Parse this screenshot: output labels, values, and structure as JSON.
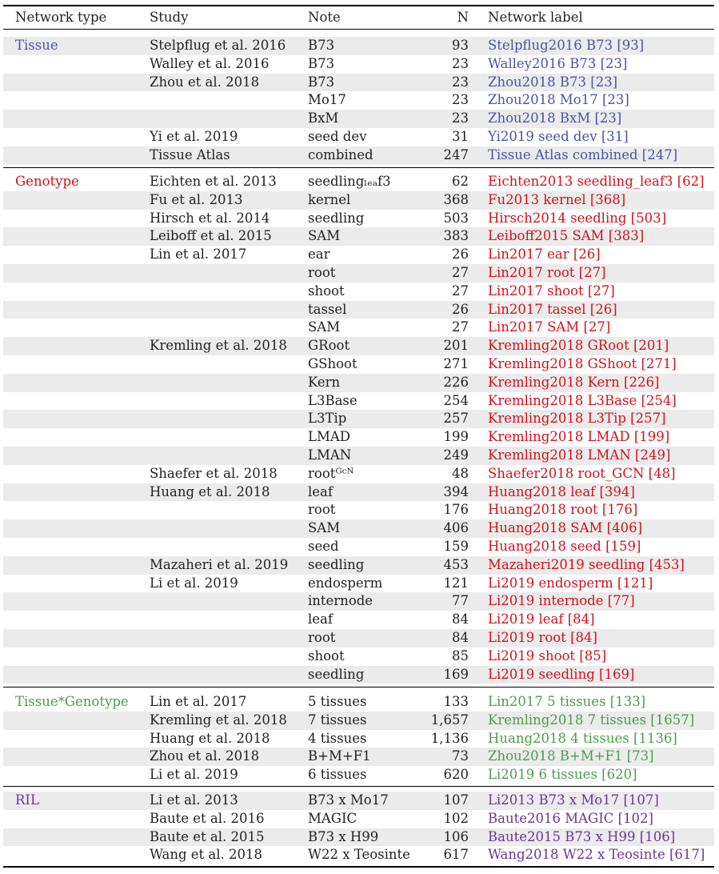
{
  "header": {
    "type": "Network type",
    "study": "Study",
    "note": "Note",
    "n": "N",
    "label": "Network label"
  },
  "colors": {
    "tissue": "#4a54a6",
    "genotype": "#d1121b",
    "tissue_genotype": "#4f9a4f",
    "ril": "#6a3796"
  },
  "groups": [
    {
      "type": "Tissue",
      "color": "#4a54a6",
      "rows": [
        {
          "study": "Stelpflug et al. 2016",
          "note": "B73",
          "n": "93",
          "label": "Stelpflug2016 B73 [93]"
        },
        {
          "study": "Walley et al. 2016",
          "note": "B73",
          "n": "23",
          "label": "Walley2016 B73 [23]"
        },
        {
          "study": "Zhou et al. 2018",
          "note": "B73",
          "n": "23",
          "label": "Zhou2018 B73 [23]"
        },
        {
          "study": "",
          "note": "Mo17",
          "n": "23",
          "label": "Zhou2018 Mo17 [23]"
        },
        {
          "study": "",
          "note": "BxM",
          "n": "23",
          "label": "Zhou2018 BxM [23]"
        },
        {
          "study": "Yi et al. 2019",
          "note": "seed dev",
          "n": "31",
          "label": "Yi2019 seed dev [31]"
        },
        {
          "study": "Tissue Atlas",
          "note": "combined",
          "n": "247",
          "label": "Tissue Atlas combined [247]"
        }
      ]
    },
    {
      "type": "Genotype",
      "color": "#d1121b",
      "rows": [
        {
          "study": "Eichten et al. 2013",
          "note": "seedlingₗ​ₑₐf3",
          "n": "62",
          "label": "Eichten2013 seedling_leaf3 [62]"
        },
        {
          "study": "Fu et al. 2013",
          "note": "kernel",
          "n": "368",
          "label": "Fu2013 kernel [368]"
        },
        {
          "study": "Hirsch et al. 2014",
          "note": "seedling",
          "n": "503",
          "label": "Hirsch2014 seedling [503]"
        },
        {
          "study": "Leiboff et al. 2015",
          "note": "SAM",
          "n": "383",
          "label": "Leiboff2015 SAM [383]"
        },
        {
          "study": "Lin et al. 2017",
          "note": "ear",
          "n": "26",
          "label": "Lin2017 ear [26]"
        },
        {
          "study": "",
          "note": "root",
          "n": "27",
          "label": "Lin2017 root [27]"
        },
        {
          "study": "",
          "note": "shoot",
          "n": "27",
          "label": "Lin2017 shoot [27]"
        },
        {
          "study": "",
          "note": "tassel",
          "n": "26",
          "label": "Lin2017 tassel [26]"
        },
        {
          "study": "",
          "note": "SAM",
          "n": "27",
          "label": "Lin2017 SAM [27]"
        },
        {
          "study": "Kremling et al. 2018",
          "note": "GRoot",
          "n": "201",
          "label": "Kremling2018 GRoot [201]"
        },
        {
          "study": "",
          "note": "GShoot",
          "n": "271",
          "label": "Kremling2018 GShoot [271]"
        },
        {
          "study": "",
          "note": "Kern",
          "n": "226",
          "label": "Kremling2018 Kern [226]"
        },
        {
          "study": "",
          "note": "L3Base",
          "n": "254",
          "label": "Kremling2018 L3Base [254]"
        },
        {
          "study": "",
          "note": "L3Tip",
          "n": "257",
          "label": "Kremling2018 L3Tip [257]"
        },
        {
          "study": "",
          "note": "LMAD",
          "n": "199",
          "label": "Kremling2018 LMAD [199]"
        },
        {
          "study": "",
          "note": "LMAN",
          "n": "249",
          "label": "Kremling2018 LMAN [249]"
        },
        {
          "study": "Shaefer et al. 2018",
          "note": "rootᴳᶜᴺ",
          "n": "48",
          "label": "Shaefer2018 root_GCN [48]"
        },
        {
          "study": "Huang et al. 2018",
          "note": "leaf",
          "n": "394",
          "label": "Huang2018 leaf [394]"
        },
        {
          "study": "",
          "note": "root",
          "n": "176",
          "label": "Huang2018 root [176]"
        },
        {
          "study": "",
          "note": "SAM",
          "n": "406",
          "label": "Huang2018 SAM [406]"
        },
        {
          "study": "",
          "note": "seed",
          "n": "159",
          "label": "Huang2018 seed [159]"
        },
        {
          "study": "Mazaheri et al. 2019",
          "note": "seedling",
          "n": "453",
          "label": "Mazaheri2019 seedling [453]"
        },
        {
          "study": "Li et al. 2019",
          "note": "endosperm",
          "n": "121",
          "label": "Li2019 endosperm [121]"
        },
        {
          "study": "",
          "note": "internode",
          "n": "77",
          "label": "Li2019 internode [77]"
        },
        {
          "study": "",
          "note": "leaf",
          "n": "84",
          "label": "Li2019 leaf [84]"
        },
        {
          "study": "",
          "note": "root",
          "n": "84",
          "label": "Li2019 root [84]"
        },
        {
          "study": "",
          "note": "shoot",
          "n": "85",
          "label": "Li2019 shoot [85]"
        },
        {
          "study": "",
          "note": "seedling",
          "n": "169",
          "label": "Li2019 seedling [169]"
        }
      ]
    },
    {
      "type": "Tissue*Genotype",
      "color": "#4f9a4f",
      "rows": [
        {
          "study": "Lin et al. 2017",
          "note": "5 tissues",
          "n": "133",
          "label": "Lin2017 5 tissues [133]"
        },
        {
          "study": "Kremling et al. 2018",
          "note": "7 tissues",
          "n": "1,657",
          "label": "Kremling2018 7 tissues [1657]"
        },
        {
          "study": "Huang et al. 2018",
          "note": "4 tissues",
          "n": "1,136",
          "label": "Huang2018 4 tissues [1136]"
        },
        {
          "study": "Zhou et al. 2018",
          "note": "B+M+F1",
          "n": "73",
          "label": "Zhou2018 B+M+F1 [73]"
        },
        {
          "study": "Li et al. 2019",
          "note": "6 tissues",
          "n": "620",
          "label": "Li2019 6 tissues [620]"
        }
      ]
    },
    {
      "type": "RIL",
      "color": "#6a3796",
      "rows": [
        {
          "study": "Li et al. 2013",
          "note": "B73 x Mo17",
          "n": "107",
          "label": "Li2013 B73 x Mo17 [107]"
        },
        {
          "study": "Baute et al. 2016",
          "note": "MAGIC",
          "n": "102",
          "label": "Baute2016 MAGIC [102]"
        },
        {
          "study": "Baute et al. 2015",
          "note": "B73 x H99",
          "n": "106",
          "label": "Baute2015 B73 x H99 [106]"
        },
        {
          "study": "Wang et al. 2018",
          "note": "W22 x Teosinte",
          "n": "617",
          "label": "Wang2018 W22 x Teosinte [617]"
        }
      ]
    }
  ]
}
